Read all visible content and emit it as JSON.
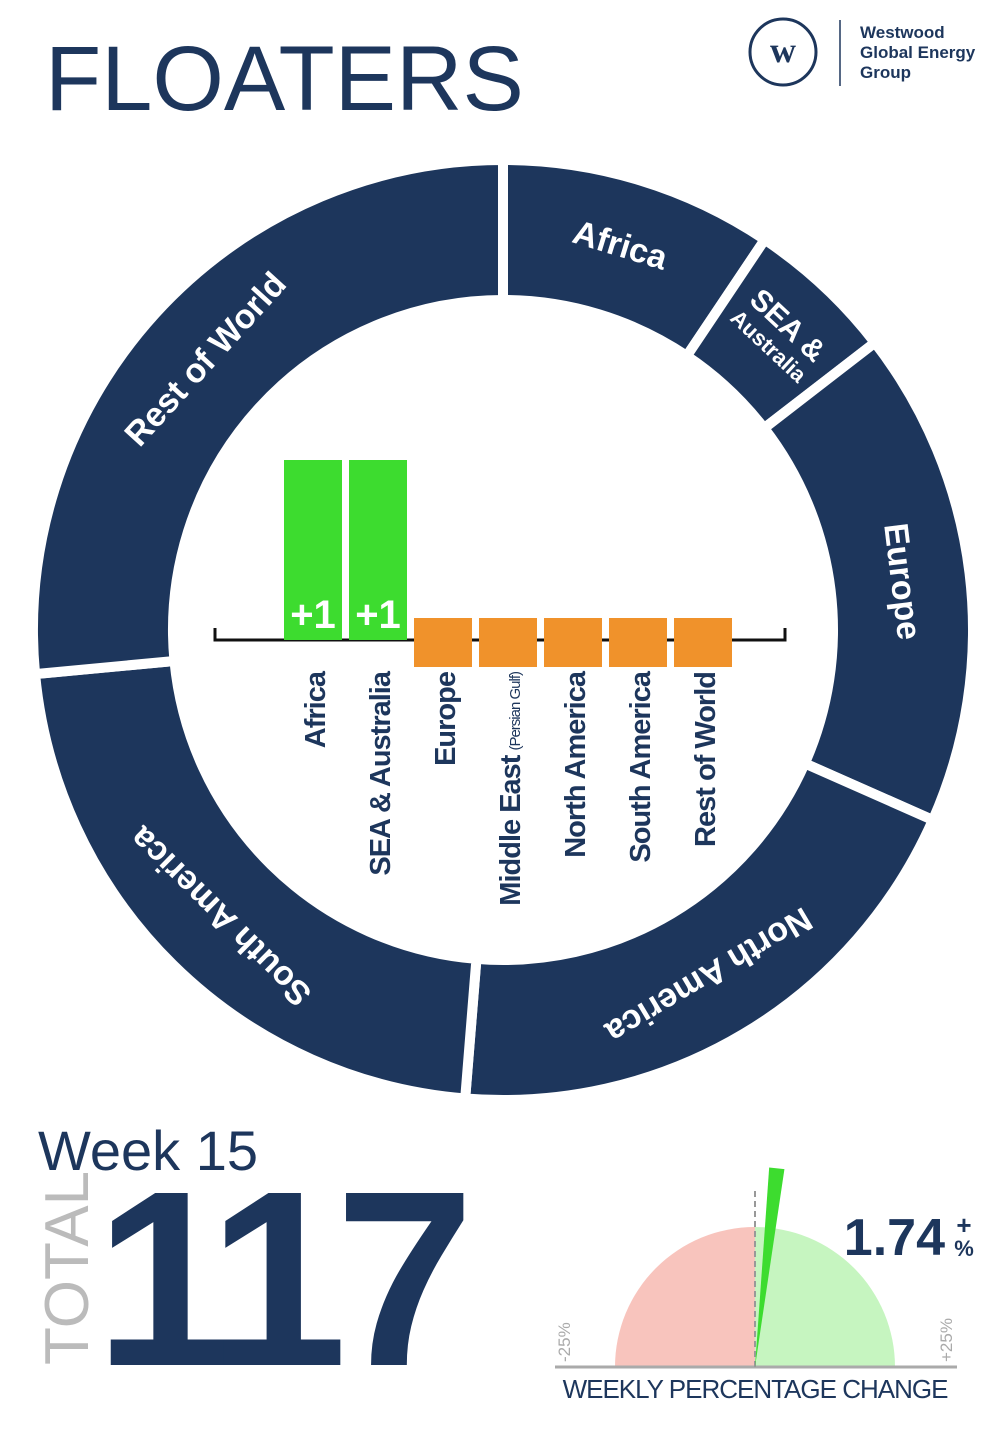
{
  "header": {
    "title": "FLOATERS",
    "logo": [
      "Westwood",
      "Global Energy",
      "Group"
    ],
    "logo_mark": "w"
  },
  "chart_data": [
    {
      "type": "donut",
      "color": "#1d365c",
      "categories": [
        [
          "Africa"
        ],
        [
          "SEA &",
          "Australia"
        ],
        [
          "Europe"
        ],
        [
          "North America"
        ],
        [
          "South America"
        ],
        [
          "Rest of World"
        ]
      ],
      "values": [
        11,
        6,
        20,
        23,
        26,
        31
      ]
    },
    {
      "type": "bar",
      "categories": [
        "Africa",
        "SEA & Australia",
        "Europe",
        "Middle East",
        "North America",
        "South America",
        "Rest of World"
      ],
      "category_notes": [
        null,
        null,
        null,
        "(Persian Gulf)",
        null,
        null,
        null
      ],
      "values": [
        1,
        1,
        0,
        0,
        0,
        0,
        0
      ],
      "value_labels": [
        "+1",
        "+1",
        null,
        null,
        null,
        null,
        null
      ],
      "ylim": [
        0,
        1
      ],
      "up_color": "#3ddc2f",
      "flat_color": "#f0922b"
    },
    {
      "type": "gauge",
      "value": 1.74,
      "value_label": "1.74",
      "sign": "+",
      "unit": "%",
      "xlim": [
        -25,
        25
      ],
      "xticks": [
        {
          "value": -25,
          "label": "-25%"
        },
        {
          "value": 25,
          "label": "+25%"
        }
      ],
      "xlabel": "WEEKLY PERCENTAGE CHANGE",
      "needle_color": "#3ddc2f",
      "down_color": "#f8c4bd",
      "up_color": "#c6f5c0"
    }
  ],
  "summary": {
    "week": "Week 15",
    "total_label": "TOTAL",
    "total": 117
  }
}
